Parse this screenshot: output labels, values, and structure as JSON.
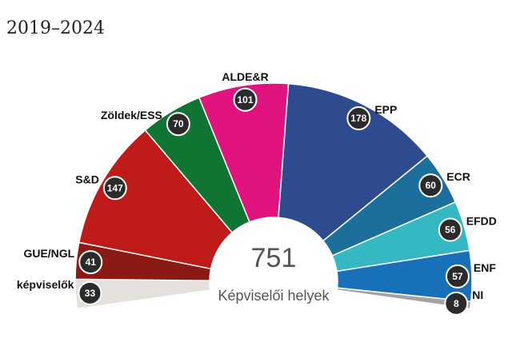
{
  "chart_data": {
    "type": "pie",
    "title": "2019–2024",
    "total": "751",
    "center_label": "Képviselői helyek",
    "series": [
      {
        "name": "képviselők",
        "value": 33,
        "color": "#e4e1dc"
      },
      {
        "name": "GUE/NGL",
        "value": 41,
        "color": "#8c1a14"
      },
      {
        "name": "S&D",
        "value": 147,
        "color": "#c01b1b"
      },
      {
        "name": "Zöldek/ESS",
        "value": 70,
        "color": "#107433"
      },
      {
        "name": "ALDE&R",
        "value": 101,
        "color": "#e0137f"
      },
      {
        "name": "EPP",
        "value": 178,
        "color": "#2f4b8f"
      },
      {
        "name": "ECR",
        "value": 60,
        "color": "#1c6f9a"
      },
      {
        "name": "EFDD",
        "value": 56,
        "color": "#34b9c3"
      },
      {
        "name": "ENF",
        "value": 57,
        "color": "#1870b8"
      },
      {
        "name": "NI",
        "value": 8,
        "color": "#a3a3a3"
      }
    ]
  }
}
